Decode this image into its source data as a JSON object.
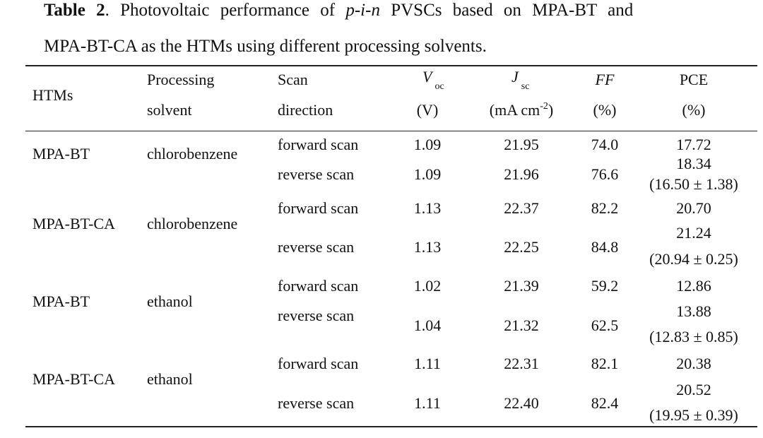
{
  "caption": {
    "label": "Table 2",
    "line1_text": ". Photovoltaic performance of ",
    "pin": "p-i-n",
    "line1_tail": " PVSCs based on MPA-BT and",
    "line2": "MPA-BT-CA as the HTMs using different processing solvents."
  },
  "headers": {
    "htms": "HTMs",
    "solvent_1": "Processing",
    "solvent_2": "solvent",
    "scan_1": "Scan",
    "scan_2": "direction",
    "voc_sym": "V",
    "voc_sub": "oc",
    "voc_unit": "(V)",
    "jsc_sym": "J",
    "jsc_sub": "sc",
    "jsc_unit_a": "(mA cm",
    "jsc_unit_sup": "-2",
    "jsc_unit_b": ")",
    "ff": "FF",
    "ff_unit": "(%)",
    "pce": "PCE",
    "pce_unit": "(%)"
  },
  "groups": [
    {
      "htm": "MPA-BT",
      "solvent": "chlorobenzene"
    },
    {
      "htm": "MPA-BT-CA",
      "solvent": "chlorobenzene"
    },
    {
      "htm": "MPA-BT",
      "solvent": "ethanol"
    },
    {
      "htm": "MPA-BT-CA",
      "solvent": "ethanol"
    }
  ],
  "rows": [
    {
      "scan": "forward scan",
      "voc": "1.09",
      "jsc": "21.95",
      "ff": "74.0",
      "pce": "17.72",
      "pce_avg": ""
    },
    {
      "scan": "reverse scan",
      "voc": "1.09",
      "jsc": "21.96",
      "ff": "76.6",
      "pce": "18.34",
      "pce_avg": "(16.50 ± 1.38)"
    },
    {
      "scan": "forward scan",
      "voc": "1.13",
      "jsc": "22.37",
      "ff": "82.2",
      "pce": "20.70",
      "pce_avg": ""
    },
    {
      "scan": "reverse scan",
      "voc": "1.13",
      "jsc": "22.25",
      "ff": "84.8",
      "pce": "21.24",
      "pce_avg": "(20.94 ± 0.25)"
    },
    {
      "scan": "forward scan",
      "voc": "1.02",
      "jsc": "21.39",
      "ff": "59.2",
      "pce": "12.86",
      "pce_avg": ""
    },
    {
      "scan": "reverse scan",
      "voc": "1.04",
      "jsc": "21.32",
      "ff": "62.5",
      "pce": "13.88",
      "pce_avg": "(12.83 ± 0.85)"
    },
    {
      "scan": "forward scan",
      "voc": "1.11",
      "jsc": "22.31",
      "ff": "82.1",
      "pce": "20.38",
      "pce_avg": ""
    },
    {
      "scan": "reverse scan",
      "voc": "1.11",
      "jsc": "22.40",
      "ff": "82.4",
      "pce": "20.52",
      "pce_avg": "(19.95 ± 0.39)"
    }
  ]
}
